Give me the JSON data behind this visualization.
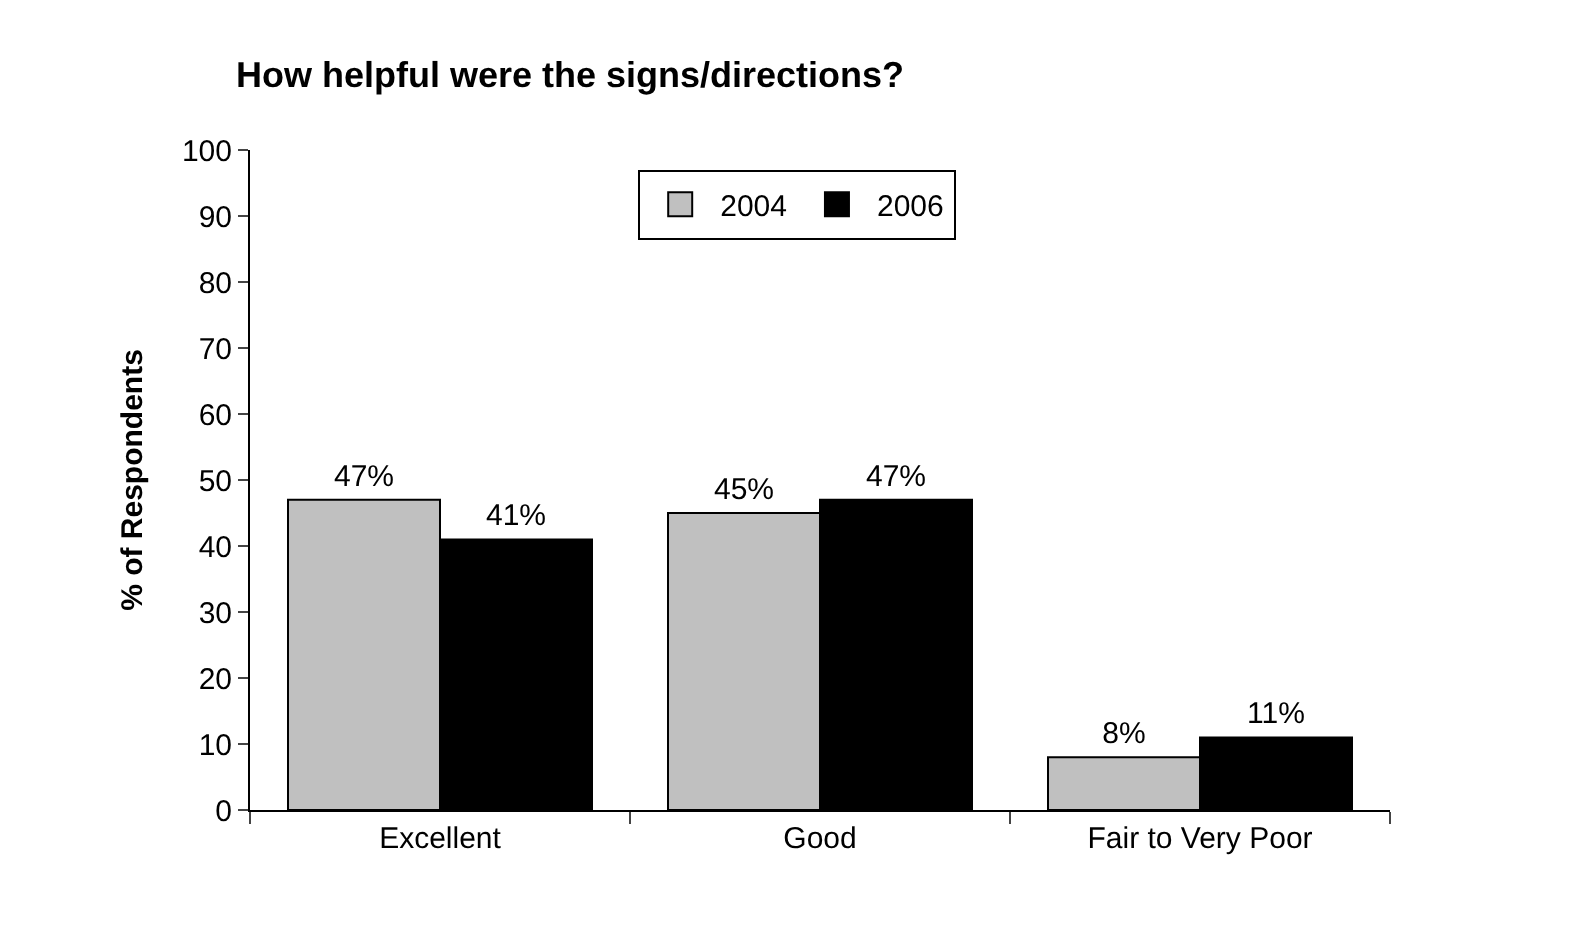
{
  "chart_data": {
    "type": "bar",
    "title": "How helpful were the signs/directions?",
    "ylabel": "% of Respondents",
    "categories": [
      "Excellent",
      "Good",
      "Fair to Very Poor"
    ],
    "series": [
      {
        "name": "2004",
        "color": "#c0c0c0",
        "values": [
          47,
          45,
          8
        ],
        "value_labels": [
          "47%",
          "45%",
          "8%"
        ]
      },
      {
        "name": "2006",
        "color": "#000000",
        "values": [
          41,
          47,
          11
        ],
        "value_labels": [
          "41%",
          "47%",
          "11%"
        ]
      }
    ],
    "ylim": [
      0,
      100
    ],
    "yticks": [
      0,
      10,
      20,
      30,
      40,
      50,
      60,
      70,
      80,
      90,
      100
    ],
    "grid": false,
    "legend": "top"
  }
}
